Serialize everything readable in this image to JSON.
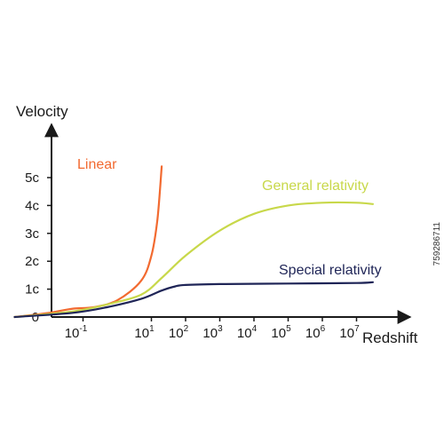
{
  "chart_data": {
    "type": "line",
    "ylabel": "Velocity",
    "xlabel": "Redshift",
    "x_scale": "log",
    "y_ticks": [
      "0",
      "1c",
      "2c",
      "3c",
      "4c",
      "5c"
    ],
    "x_ticks": [
      {
        "base": "10",
        "exp": "-1"
      },
      {
        "base": "10",
        "exp": "1"
      },
      {
        "base": "10",
        "exp": "2"
      },
      {
        "base": "10",
        "exp": "3"
      },
      {
        "base": "10",
        "exp": "4"
      },
      {
        "base": "10",
        "exp": "5"
      },
      {
        "base": "10",
        "exp": "6"
      },
      {
        "base": "10",
        "exp": "7"
      }
    ],
    "ylim": [
      0,
      5.5
    ],
    "grid": false,
    "series": [
      {
        "name": "Linear",
        "color": "#f26a30",
        "points": [
          [
            0.001,
            0
          ],
          [
            0.01,
            0.15
          ],
          [
            0.05,
            0.3
          ],
          [
            0.2,
            0.35
          ],
          [
            1,
            0.6
          ],
          [
            5,
            1.3
          ],
          [
            10,
            2.2
          ],
          [
            15,
            3.5
          ],
          [
            20,
            5.4
          ]
        ]
      },
      {
        "name": "General relativity",
        "color": "#c8d84a",
        "points": [
          [
            0.001,
            0
          ],
          [
            0.05,
            0.2
          ],
          [
            0.5,
            0.45
          ],
          [
            5,
            0.8
          ],
          [
            20,
            1.4
          ],
          [
            100,
            2.2
          ],
          [
            1000,
            3.1
          ],
          [
            10000,
            3.7
          ],
          [
            100000,
            4.0
          ],
          [
            1000000,
            4.1
          ],
          [
            10000000,
            4.1
          ],
          [
            30000000,
            4.05
          ]
        ]
      },
      {
        "name": "Special relativity",
        "color": "#1f2557",
        "points": [
          [
            0.001,
            0
          ],
          [
            0.05,
            0.15
          ],
          [
            0.5,
            0.35
          ],
          [
            5,
            0.65
          ],
          [
            20,
            0.95
          ],
          [
            50,
            1.1
          ],
          [
            100,
            1.15
          ],
          [
            1000,
            1.18
          ],
          [
            100000,
            1.2
          ],
          [
            10000000,
            1.22
          ],
          [
            30000000,
            1.25
          ]
        ]
      }
    ]
  },
  "watermark": "759286711"
}
